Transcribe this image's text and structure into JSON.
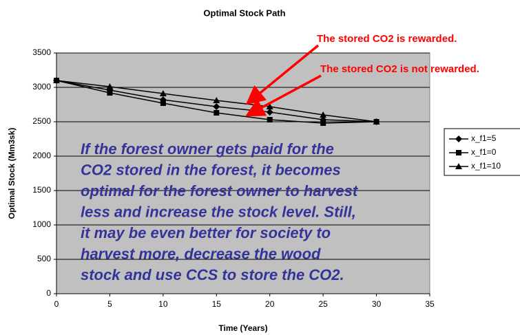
{
  "chart_data": {
    "type": "line",
    "title": "Optimal Stock Path",
    "xlabel": "Time (Years)",
    "ylabel": "Optimal Stock (Mm3sk)",
    "x": [
      0,
      5,
      10,
      15,
      20,
      25,
      30
    ],
    "series": [
      {
        "name": "x_f1=5",
        "color": "#000000",
        "marker": "diamond",
        "values": [
          3100,
          2960,
          2820,
          2720,
          2640,
          2530,
          2500
        ]
      },
      {
        "name": "x_f1=0",
        "color": "#000000",
        "marker": "square",
        "values": [
          3100,
          2920,
          2770,
          2630,
          2530,
          2480,
          2500
        ]
      },
      {
        "name": "x_f1=10",
        "color": "#000000",
        "marker": "triangle",
        "values": [
          3100,
          3010,
          2910,
          2810,
          2720,
          2600,
          2500
        ]
      }
    ],
    "xlim": [
      0,
      35
    ],
    "xticks": [
      0,
      5,
      10,
      15,
      20,
      25,
      30,
      35
    ],
    "ylim": [
      0,
      3500
    ],
    "yticks": [
      0,
      500,
      1000,
      1500,
      2000,
      2500,
      3000,
      3500
    ],
    "grid": true,
    "legend": "right",
    "annotations": [
      "The stored CO2 is rewarded.",
      "The stored CO2 is not rewarded."
    ],
    "note": [
      "If the forest owner gets paid for the",
      "CO2 stored in the forest, it becomes",
      "optimal for the forest owner to harvest",
      "less and increase the stock level. Still,",
      "it may be even better for society to",
      "harvest more, decrease the wood",
      "stock and use CCS to store the CO2."
    ]
  }
}
